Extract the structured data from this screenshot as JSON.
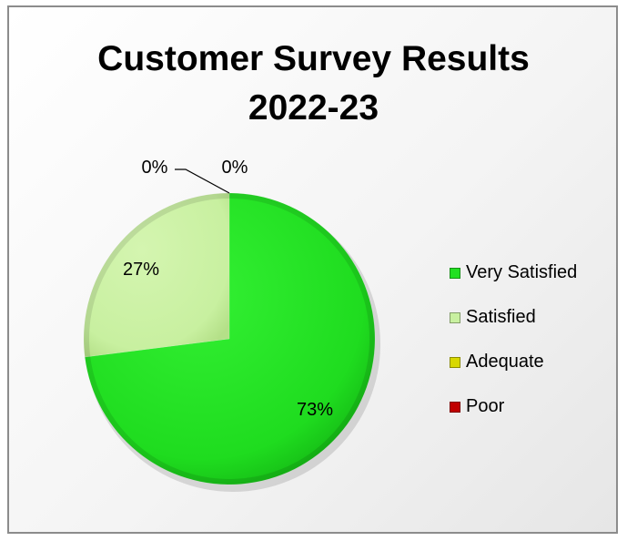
{
  "chart_data": {
    "type": "pie",
    "title": "Customer Survey Results 2022-23",
    "title_lines": [
      "Customer Survey Results",
      "2022-23"
    ],
    "categories": [
      "Very Satisfied",
      "Satisfied",
      "Adequate",
      "Poor"
    ],
    "values": [
      73,
      27,
      0,
      0
    ],
    "data_labels": [
      "73%",
      "27%",
      "0%",
      "0%"
    ],
    "colors": [
      "#22e022",
      "#c8f0a0",
      "#d8d800",
      "#c00000"
    ],
    "legend_position": "right",
    "start_angle": "12 o'clock",
    "direction": "clockwise"
  }
}
